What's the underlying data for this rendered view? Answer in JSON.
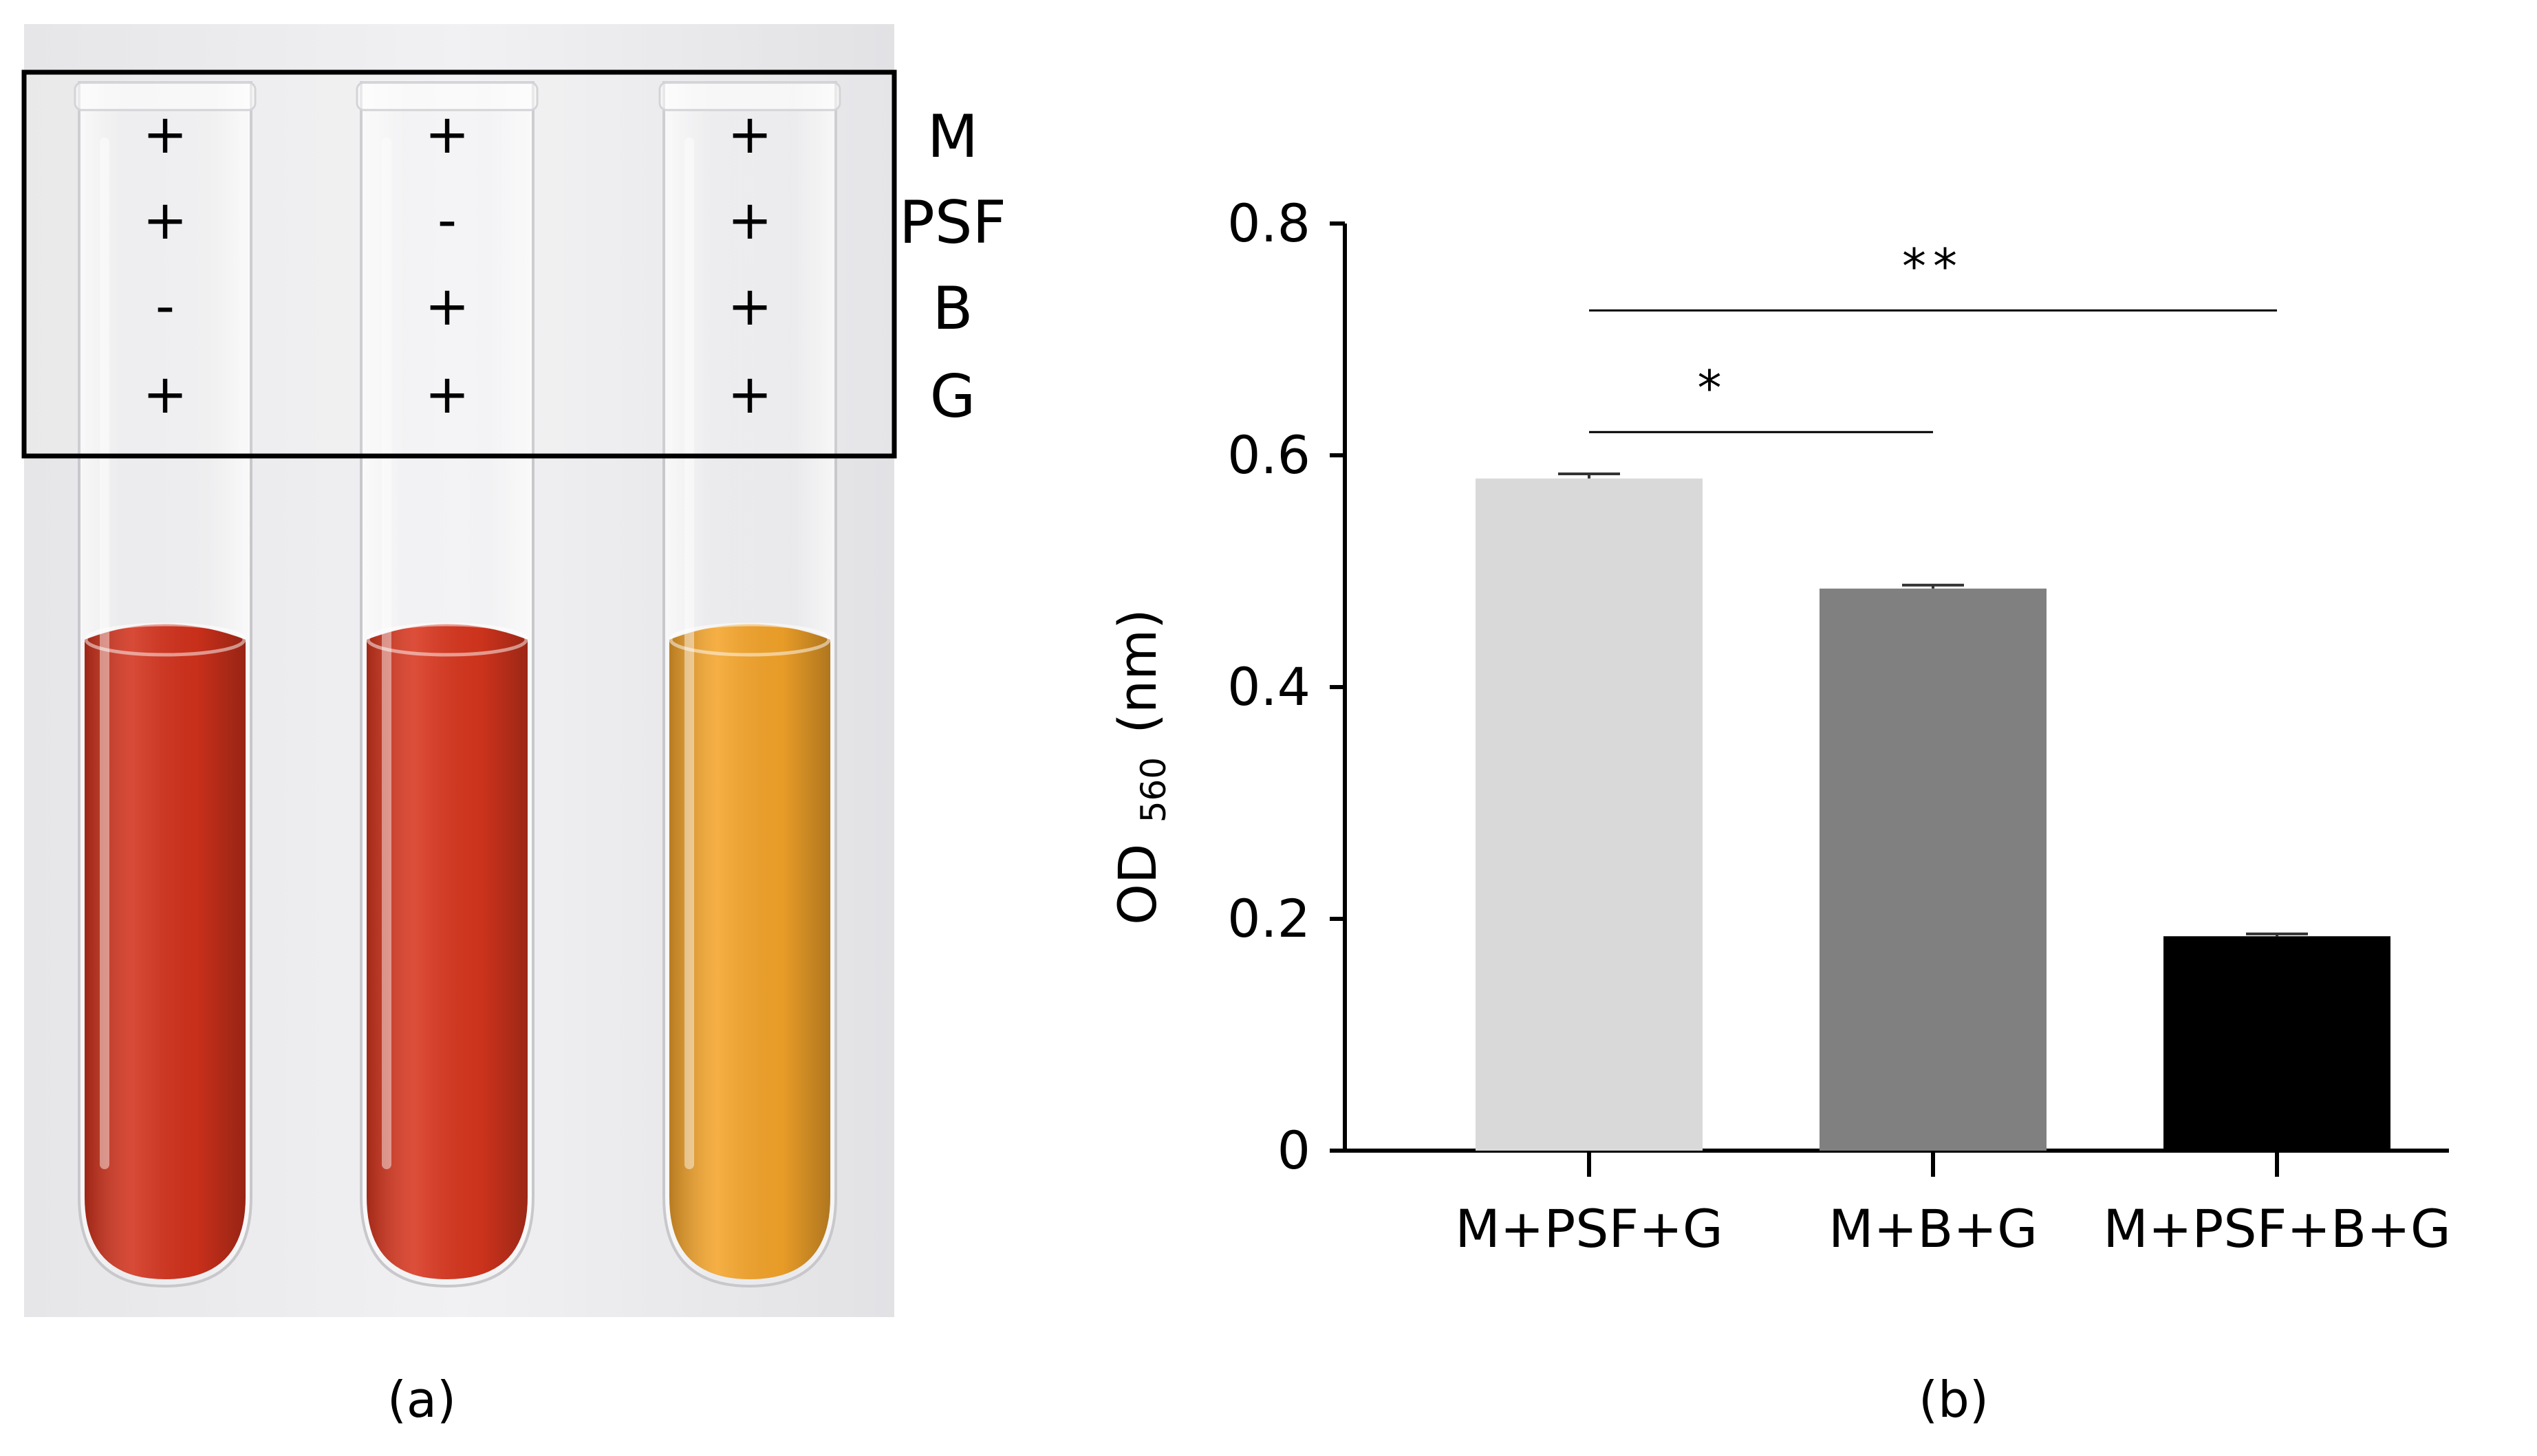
{
  "panel_a": {
    "label": "(a)",
    "row_labels": [
      "M",
      "PSF",
      "B",
      "G"
    ],
    "tubes": [
      {
        "signs": [
          "+",
          "+",
          "-",
          "+"
        ],
        "liquid_color": "#d2321c"
      },
      {
        "signs": [
          "+",
          "-",
          "+",
          "+"
        ],
        "liquid_color": "#d8361e"
      },
      {
        "signs": [
          "+",
          "+",
          "+",
          "+"
        ],
        "liquid_color": "#f4a42a"
      }
    ]
  },
  "panel_b": {
    "label": "(b)"
  },
  "chart_data": {
    "type": "bar",
    "categories": [
      "M+PSF+G",
      "M+B+G",
      "M+PSF+B+G"
    ],
    "values": [
      0.58,
      0.485,
      0.185
    ],
    "errors": [
      0.004,
      0.003,
      0.002
    ],
    "colors": [
      "#d9d9d9",
      "#808080",
      "#000000"
    ],
    "ylabel_main": "OD",
    "ylabel_sub": "560",
    "ylabel_unit": "(nm)",
    "ylim": [
      0,
      0.8
    ],
    "yticks": [
      0,
      0.2,
      0.4,
      0.6,
      0.8
    ],
    "ytick_labels": [
      "0",
      "0.2",
      "0.4",
      "0.6",
      "0.8"
    ],
    "grid": false,
    "significance": [
      {
        "from": 0,
        "to": 1,
        "label": "*",
        "y": 0.62
      },
      {
        "from": 0,
        "to": 2,
        "label": "**",
        "y": 0.725
      }
    ]
  }
}
